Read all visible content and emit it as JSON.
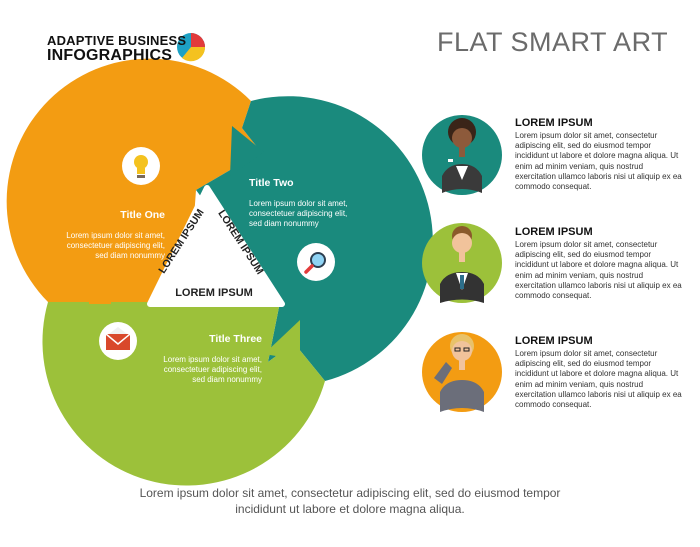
{
  "brand": {
    "line1": "ADAPTIVE BUSINESS",
    "line2": "INFOGRAPHICS"
  },
  "title": "FLAT SMART ART",
  "cycle": {
    "center_sides": [
      "LOREM IPSUM",
      "LOREM IPSUM",
      "LOREM IPSUM"
    ],
    "segments": [
      {
        "title": "Title One",
        "text": [
          "Lorem ipsum dolor sit amet,",
          "consectetuer adipiscing elit,",
          "sed diam nonummy"
        ],
        "icon": "lightbulb-icon",
        "color": "#f39c12"
      },
      {
        "title": "Title Two",
        "text": [
          "Lorem ipsum dolor sit amet,",
          "consectetuer adipiscing elit,",
          "sed diam nonummy"
        ],
        "icon": "magnifier-icon",
        "color": "#1a8a7d"
      },
      {
        "title": "Title Three",
        "text": [
          "Lorem ipsum dolor sit amet,",
          "consectetuer adipiscing elit,",
          "sed diam nonummy"
        ],
        "icon": "envelope-icon",
        "color": "#9cc13a"
      }
    ]
  },
  "people": [
    {
      "title": "LOREM IPSUM",
      "text": "Lorem ipsum dolor sit amet, consectetur adipiscing elit, sed do eiusmod tempor incididunt ut labore et dolore magna aliqua. Ut enim ad minim veniam, quis nostrud exercitation ullamco laboris nisi ut aliquip ex ea commodo consequat.",
      "avatar": "businesswoman-avatar",
      "color": "#1a8a7d"
    },
    {
      "title": "LOREM IPSUM",
      "text": "Lorem ipsum dolor sit amet, consectetur adipiscing elit, sed do eiusmod tempor incididunt ut labore et dolore magna aliqua. Ut enim ad minim veniam, quis nostrud exercitation ullamco laboris nisi ut aliquip ex ea commodo consequat.",
      "avatar": "businessman-avatar",
      "color": "#9cc13a"
    },
    {
      "title": "LOREM IPSUM",
      "text": "Lorem ipsum dolor sit amet, consectetur adipiscing elit, sed do eiusmod tempor incididunt ut labore et dolore magna aliqua. Ut enim ad minim veniam, quis nostrud exercitation ullamco laboris nisi ut aliquip ex ea commodo consequat.",
      "avatar": "woman-with-glasses-avatar",
      "color": "#f39c12"
    }
  ],
  "footer": [
    "Lorem ipsum dolor sit amet, consectetur adipiscing elit, sed do eiusmod tempor",
    "incididunt ut labore et dolore magna aliqua."
  ]
}
